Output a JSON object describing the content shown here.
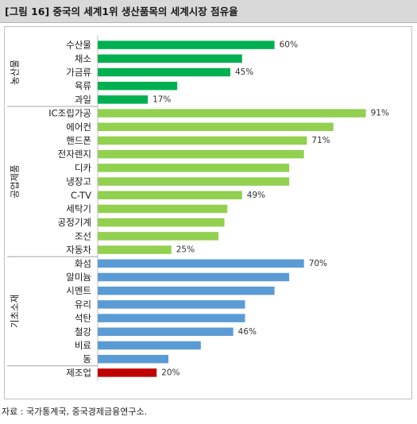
{
  "figure": {
    "title": "[그림 16] 중국의 세계1위 생산품목의 세계시장 점유율",
    "source": "자료 : 국가통계국, 중국경제금융연구소."
  },
  "chart_data": {
    "type": "bar",
    "orientation": "horizontal",
    "xlim": [
      0,
      100
    ],
    "xticks": [
      "0%",
      "20%",
      "40%",
      "60%",
      "80%",
      "100%"
    ],
    "grid": false,
    "legend": "none",
    "groups": [
      {
        "name": "농산물",
        "color": "#00b050",
        "start": 0,
        "end": 4
      },
      {
        "name": "공업제품",
        "color": "#92d050",
        "start": 5,
        "end": 15
      },
      {
        "name": "기초소재",
        "color": "#5b9bd5",
        "start": 16,
        "end": 23
      },
      {
        "name": "",
        "color": "#c00000",
        "start": 24,
        "end": 24
      }
    ],
    "categories": [
      "수산물",
      "채소",
      "가금류",
      "육류",
      "과일",
      "IC조립가공",
      "에어컨",
      "핸드폰",
      "전자렌지",
      "디카",
      "냉장고",
      "C-TV",
      "세탁기",
      "공정기계",
      "조선",
      "자동차",
      "화섬",
      "알미늄",
      "시멘트",
      "유리",
      "석탄",
      "철강",
      "비료",
      "동",
      "제조업"
    ],
    "values": [
      60,
      49,
      45,
      27,
      17,
      91,
      80,
      71,
      70,
      65,
      65,
      49,
      44,
      43,
      41,
      25,
      70,
      65,
      60,
      50,
      50,
      46,
      35,
      24,
      20
    ],
    "data_labels": {
      "0": "60%",
      "2": "45%",
      "4": "17%",
      "5": "91%",
      "7": "71%",
      "11": "49%",
      "15": "25%",
      "16": "70%",
      "21": "46%",
      "24": "20%"
    }
  }
}
